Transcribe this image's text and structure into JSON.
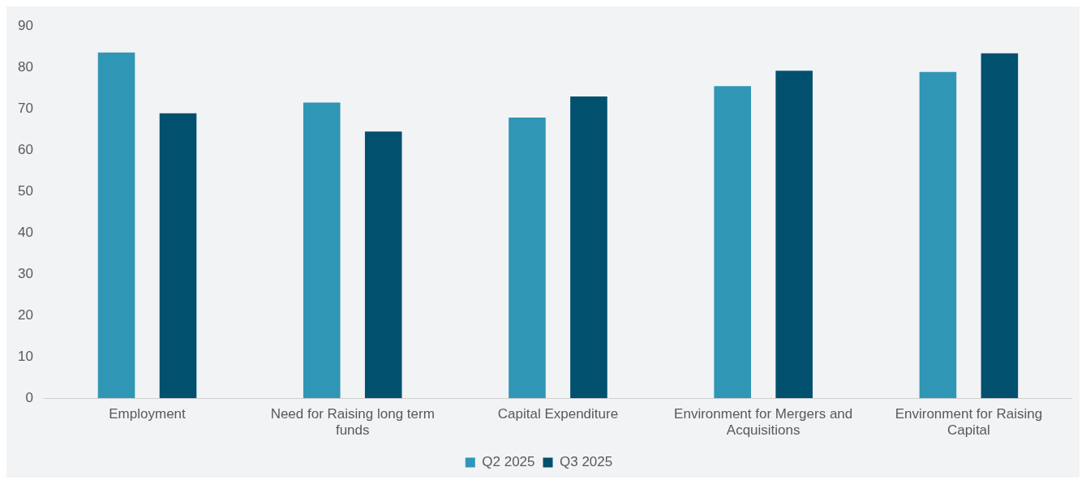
{
  "chart_data": {
    "type": "bar",
    "categories": [
      "Employment",
      "Need for Raising long term funds",
      "Capital Expenditure",
      "Environment for Mergers and Acquisitions",
      "Environment for Raising Capital"
    ],
    "series": [
      {
        "name": "Q2 2025",
        "color": "#3096b5",
        "values": [
          83.6,
          71.5,
          67.9,
          75.5,
          78.9
        ]
      },
      {
        "name": "Q3 2025",
        "color": "#01506e",
        "values": [
          68.9,
          64.5,
          73.0,
          79.2,
          83.4
        ]
      }
    ],
    "ylim": [
      0,
      90
    ],
    "yticks": [
      0,
      10,
      20,
      30,
      40,
      50,
      60,
      70,
      80,
      90
    ],
    "grid": false,
    "legend": "bottom"
  }
}
